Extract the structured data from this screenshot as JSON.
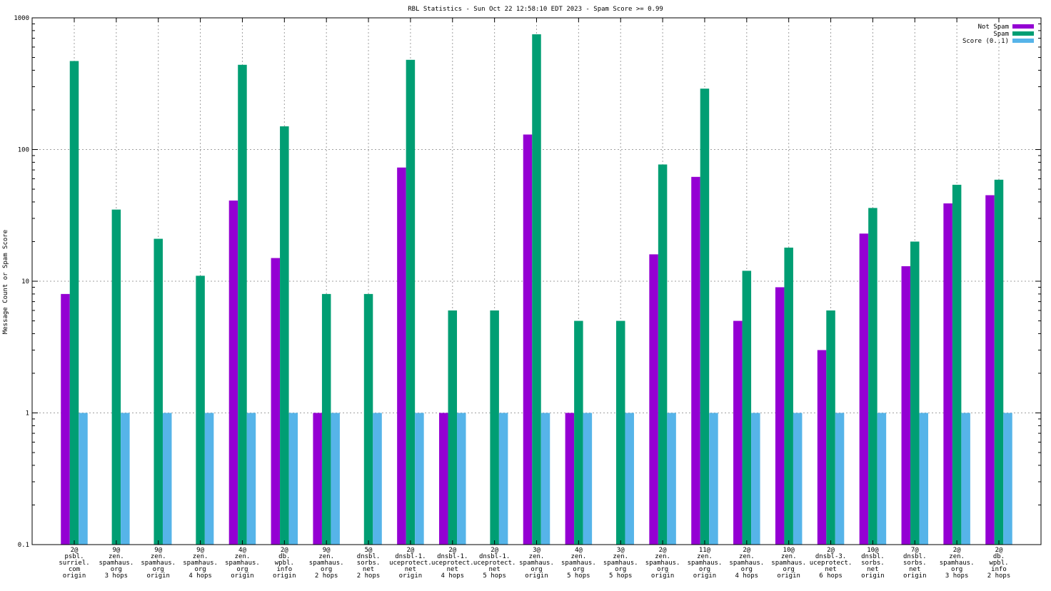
{
  "chart_data": {
    "type": "bar",
    "title": "RBL Statistics - Sun Oct 22 12:58:10 EDT 2023 - Spam Score >= 0.99",
    "xlabel": "",
    "ylabel": "Message Count or Spam Score",
    "yscale": "log",
    "ylim": [
      0.1,
      1000
    ],
    "yticks": [
      "0.1",
      "1",
      "10",
      "100",
      "1000"
    ],
    "grid": true,
    "legend_position": "top-right",
    "categories": [
      [
        "2@",
        "psbl.",
        "surriel.",
        "com",
        "origin"
      ],
      [
        "9@",
        "zen.",
        "spamhaus.",
        "org",
        "3 hops"
      ],
      [
        "9@",
        "zen.",
        "spamhaus.",
        "org",
        "origin"
      ],
      [
        "9@",
        "zen.",
        "spamhaus.",
        "org",
        "4 hops"
      ],
      [
        "4@",
        "zen.",
        "spamhaus.",
        "org",
        "origin"
      ],
      [
        "2@",
        "db.",
        "wpbl.",
        "info",
        "origin"
      ],
      [
        "9@",
        "zen.",
        "spamhaus.",
        "org",
        "2 hops"
      ],
      [
        "5@",
        "dnsbl.",
        "sorbs.",
        "net",
        "2 hops"
      ],
      [
        "2@",
        "dnsbl-1.",
        "uceprotect.",
        "net",
        "origin"
      ],
      [
        "2@",
        "dnsbl-1.",
        "uceprotect.",
        "net",
        "4 hops"
      ],
      [
        "2@",
        "dnsbl-1.",
        "uceprotect.",
        "net",
        "5 hops"
      ],
      [
        "3@",
        "zen.",
        "spamhaus.",
        "org",
        "origin"
      ],
      [
        "4@",
        "zen.",
        "spamhaus.",
        "org",
        "5 hops"
      ],
      [
        "3@",
        "zen.",
        "spamhaus.",
        "org",
        "5 hops"
      ],
      [
        "2@",
        "zen.",
        "spamhaus.",
        "org",
        "origin"
      ],
      [
        "11@",
        "zen.",
        "spamhaus.",
        "org",
        "origin"
      ],
      [
        "2@",
        "zen.",
        "spamhaus.",
        "org",
        "4 hops"
      ],
      [
        "10@",
        "zen.",
        "spamhaus.",
        "org",
        "origin"
      ],
      [
        "2@",
        "dnsbl-3.",
        "uceprotect.",
        "net",
        "6 hops"
      ],
      [
        "10@",
        "dnsbl.",
        "sorbs.",
        "net",
        "origin"
      ],
      [
        "7@",
        "dnsbl.",
        "sorbs.",
        "net",
        "origin"
      ],
      [
        "2@",
        "zen.",
        "spamhaus.",
        "org",
        "3 hops"
      ],
      [
        "2@",
        "db.",
        "wpbl.",
        "info",
        "2 hops"
      ]
    ],
    "series": [
      {
        "name": "Not Spam",
        "color": "#9400d3",
        "values": [
          8,
          null,
          null,
          null,
          41,
          15,
          1,
          null,
          73,
          1,
          null,
          130,
          1,
          null,
          16,
          62,
          5,
          9,
          3,
          23,
          13,
          39,
          45
        ]
      },
      {
        "name": "Spam",
        "color": "#009e73",
        "values": [
          470,
          35,
          21,
          11,
          440,
          150,
          8,
          8,
          480,
          6,
          6,
          750,
          5,
          5,
          77,
          290,
          12,
          18,
          6,
          36,
          20,
          54,
          59
        ]
      },
      {
        "name": "Score (0..1)",
        "color": "#56b4e9",
        "values": [
          1,
          1,
          1,
          1,
          1,
          1,
          1,
          1,
          1,
          1,
          1,
          1,
          1,
          1,
          1,
          1,
          1,
          1,
          1,
          1,
          1,
          1,
          1
        ]
      }
    ]
  }
}
